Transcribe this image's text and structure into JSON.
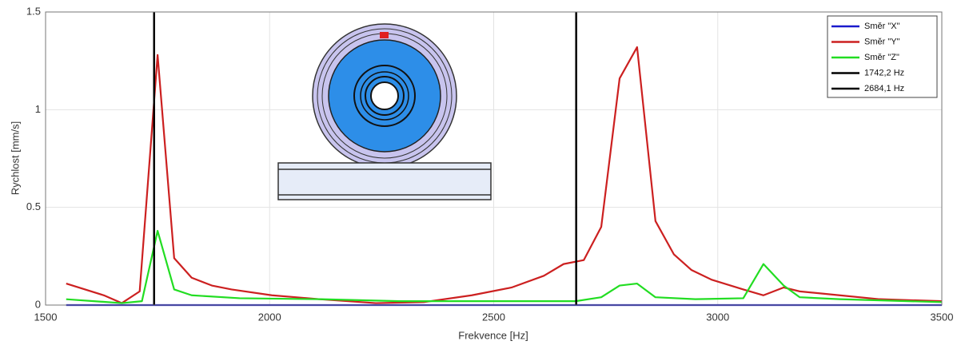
{
  "chart_data": {
    "type": "line",
    "x_label": "Frekvence  [Hz]",
    "y_label": "Rychlost [mm/s]",
    "xlim": [
      1500,
      3500
    ],
    "xticks": [
      1500,
      2000,
      2500,
      3000,
      3500
    ],
    "ylim": [
      0,
      1.5
    ],
    "yticks": [
      0,
      0.5,
      1,
      1.5
    ],
    "grid": true,
    "legend": "upper right",
    "series": [
      {
        "name": "Směr \"X\"",
        "color": "#1a1acc",
        "x": [
          1546,
          3500
        ],
        "values": [
          0,
          0
        ]
      },
      {
        "name": "Směr \"Y\"",
        "color": "#cc2020",
        "x": [
          1546,
          1630,
          1670,
          1710,
          1750,
          1787,
          1826,
          1871,
          1915,
          2005,
          2112,
          2237,
          2344,
          2451,
          2540,
          2612,
          2656,
          2701,
          2740,
          2781,
          2820,
          2861,
          2902,
          2941,
          2986,
          3057,
          3102,
          3147,
          3183,
          3272,
          3361,
          3500
        ],
        "values": [
          0.11,
          0.05,
          0.01,
          0.07,
          1.28,
          0.24,
          0.14,
          0.1,
          0.08,
          0.05,
          0.03,
          0.01,
          0.015,
          0.05,
          0.09,
          0.15,
          0.21,
          0.23,
          0.4,
          1.16,
          1.32,
          0.43,
          0.26,
          0.18,
          0.13,
          0.08,
          0.05,
          0.09,
          0.07,
          0.05,
          0.03,
          0.02
        ]
      },
      {
        "name": "Směr \"Z\"",
        "color": "#22dd22",
        "x": [
          1546,
          1670,
          1715,
          1750,
          1787,
          1826,
          1933,
          2112,
          2290,
          2469,
          2683,
          2740,
          2781,
          2820,
          2861,
          2950,
          3057,
          3102,
          3147,
          3183,
          3272,
          3500
        ],
        "values": [
          0.03,
          0.01,
          0.02,
          0.38,
          0.08,
          0.05,
          0.035,
          0.03,
          0.02,
          0.02,
          0.02,
          0.04,
          0.1,
          0.11,
          0.04,
          0.03,
          0.035,
          0.21,
          0.1,
          0.04,
          0.03,
          0.015
        ]
      }
    ],
    "vlines": [
      {
        "name": "1742,2 Hz",
        "x": 1742.2,
        "color": "#000000"
      },
      {
        "name": "2684,1 Hz",
        "x": 2684.1,
        "color": "#000000"
      }
    ]
  }
}
